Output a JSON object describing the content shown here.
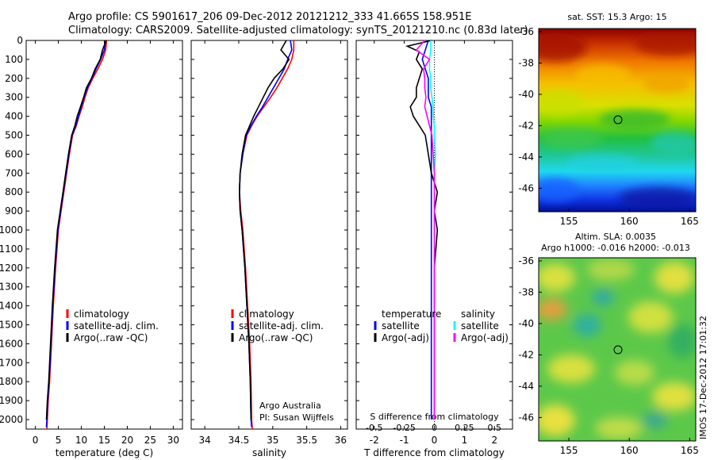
{
  "header": {
    "line1": "Argo profile: CS 5901617_206 09-Dec-2012 20121212_333 41.665S 158.951E",
    "line2": "Climatology: CARS2009. Satellite-adjusted climatology: synTS_20121210.nc (0.83d later)"
  },
  "colors": {
    "climatology": "#ff0000",
    "satellite": "#0000ff",
    "argo": "#000000",
    "salinity_satellite": "#00ffff",
    "salinity_argo": "#ff00ff"
  },
  "chart_data": [
    {
      "type": "line",
      "panel": "temperature",
      "xlabel": "temperature (deg C)",
      "xlim": [
        -2,
        32
      ],
      "xticks": [
        0,
        5,
        10,
        15,
        20,
        25,
        30
      ],
      "ylim": [
        2050,
        0
      ],
      "yticks": [
        0,
        100,
        200,
        300,
        400,
        500,
        600,
        700,
        800,
        900,
        1000,
        1100,
        1200,
        1300,
        1400,
        1500,
        1600,
        1700,
        1800,
        1900,
        2000
      ],
      "legend": [
        {
          "label": "climatology",
          "color": "#ff0000"
        },
        {
          "label": "satellite-adj. clim.",
          "color": "#0000ff"
        },
        {
          "label": "Argo(..raw -QC)",
          "color": "#000000"
        }
      ],
      "series": [
        {
          "name": "climatology",
          "color": "#ff0000",
          "x": [
            15.5,
            15.3,
            14.6,
            13.6,
            12.5,
            11.5,
            10.8,
            10.2,
            9.5,
            8.9,
            8.1,
            7.4,
            6.8,
            6.2,
            5.6,
            5.0,
            4.4,
            3.9,
            3.5,
            3.1,
            2.8,
            2.6,
            2.5
          ],
          "y": [
            0,
            50,
            100,
            150,
            200,
            250,
            300,
            350,
            400,
            450,
            500,
            600,
            700,
            800,
            900,
            1000,
            1200,
            1400,
            1600,
            1800,
            1900,
            2000,
            2050
          ]
        },
        {
          "name": "satellite-adj. clim.",
          "color": "#0000ff",
          "x": [
            15.3,
            15.0,
            14.2,
            13.2,
            12.3,
            11.3,
            10.6,
            10.0,
            9.4,
            8.8,
            8.0,
            7.3,
            6.7,
            6.1,
            5.5,
            4.9,
            4.3,
            3.8,
            3.4,
            3.0,
            2.7,
            2.5,
            2.4
          ],
          "y": [
            0,
            50,
            100,
            150,
            200,
            250,
            300,
            350,
            400,
            450,
            500,
            600,
            700,
            800,
            900,
            1000,
            1200,
            1400,
            1600,
            1800,
            1900,
            2000,
            2040
          ]
        },
        {
          "name": "Argo(..raw -QC)",
          "color": "#000000",
          "x": [
            15.4,
            14.6,
            14.1,
            13.0,
            12.2,
            11.1,
            10.5,
            9.8,
            9.1,
            8.6,
            7.9,
            7.2,
            6.6,
            6.0,
            5.4,
            4.8,
            4.2,
            3.7,
            3.3,
            2.9,
            2.6,
            2.4
          ],
          "y": [
            0,
            50,
            100,
            150,
            200,
            250,
            300,
            350,
            400,
            450,
            500,
            600,
            700,
            800,
            900,
            1000,
            1200,
            1400,
            1600,
            1800,
            1900,
            2000
          ]
        }
      ],
      "annotation": ""
    },
    {
      "type": "line",
      "panel": "salinity",
      "xlabel": "salinity",
      "xlim": [
        33.8,
        36.1
      ],
      "xticks": [
        34,
        34.5,
        35,
        35.5,
        36
      ],
      "xticklabels": [
        "34",
        "34.5",
        "35",
        "35.5",
        "36"
      ],
      "ylim": [
        2050,
        0
      ],
      "legend": [
        {
          "label": "climatology",
          "color": "#ff0000"
        },
        {
          "label": "satellite-adj. clim.",
          "color": "#0000ff"
        },
        {
          "label": "Argo(..raw -QC)",
          "color": "#000000"
        }
      ],
      "series": [
        {
          "name": "climatology",
          "color": "#ff0000",
          "x": [
            35.31,
            35.31,
            35.28,
            35.22,
            35.14,
            35.06,
            34.97,
            34.87,
            34.77,
            34.69,
            34.62,
            34.56,
            34.52,
            34.51,
            34.53,
            34.56,
            34.6,
            34.63,
            34.66,
            34.68,
            34.69,
            34.7
          ],
          "y": [
            0,
            50,
            100,
            150,
            200,
            250,
            300,
            350,
            400,
            450,
            500,
            600,
            700,
            800,
            900,
            1000,
            1200,
            1400,
            1600,
            1800,
            2000,
            2050
          ]
        },
        {
          "name": "satellite-adj. clim.",
          "color": "#0000ff",
          "x": [
            35.26,
            35.28,
            35.22,
            35.17,
            35.09,
            35.01,
            34.93,
            34.85,
            34.76,
            34.68,
            34.61,
            34.56,
            34.52,
            34.51,
            34.52,
            34.55,
            34.59,
            34.62,
            34.65,
            34.67,
            34.68,
            34.69
          ],
          "y": [
            0,
            50,
            100,
            150,
            200,
            250,
            300,
            350,
            400,
            450,
            500,
            600,
            700,
            800,
            900,
            1000,
            1200,
            1400,
            1600,
            1800,
            2000,
            2040
          ]
        },
        {
          "name": "Argo(..raw -QC)",
          "color": "#000000",
          "x": [
            35.2,
            35.12,
            35.24,
            35.15,
            35.02,
            34.93,
            34.86,
            34.79,
            34.72,
            34.66,
            34.6,
            34.55,
            34.52,
            34.51,
            34.52,
            34.55,
            34.59,
            34.62,
            34.65,
            34.67,
            34.68
          ],
          "y": [
            0,
            50,
            100,
            150,
            200,
            250,
            300,
            350,
            400,
            450,
            500,
            600,
            700,
            800,
            900,
            1000,
            1200,
            1400,
            1600,
            1800,
            2000
          ]
        }
      ],
      "annotation": [
        "Argo Australia",
        "PI: Susan Wijffels"
      ]
    },
    {
      "type": "line",
      "panel": "difference",
      "xlabel": "T difference from climatology",
      "xlim": [
        -2.6,
        2.6
      ],
      "xticks": [
        -2,
        -1,
        0,
        1,
        2
      ],
      "xticklabels": [
        "-2",
        "-1",
        "0",
        "1",
        "2"
      ],
      "x2label": "S difference from climatology",
      "x2ticks": [
        -0.5,
        -0.25,
        0,
        0.25,
        0.5
      ],
      "x2ticklabels": [
        "-0.5",
        "-0.25",
        "0",
        "0.25",
        "0.5"
      ],
      "ylim": [
        2050,
        0
      ],
      "legend": [
        {
          "group": "temperature",
          "label": "satellite",
          "color": "#0000ff"
        },
        {
          "group": "temperature",
          "label": "Argo(-adj)",
          "color": "#000000"
        },
        {
          "group": "salinity",
          "label": "satellite",
          "color": "#00ffff"
        },
        {
          "group": "salinity",
          "label": "Argo(-adj)",
          "color": "#ff00ff"
        }
      ],
      "series": [
        {
          "name": "T satellite",
          "color": "#0000ff",
          "x": [
            -0.2,
            -0.3,
            -0.4,
            -0.3,
            -0.2,
            -0.2,
            -0.2,
            -0.1,
            -0.1,
            -0.1,
            -0.1,
            -0.1,
            -0.1,
            -0.1,
            -0.1,
            -0.1,
            -0.1,
            -0.1,
            -0.1,
            -0.1,
            -0.1
          ],
          "y": [
            0,
            50,
            100,
            150,
            200,
            250,
            300,
            350,
            400,
            450,
            500,
            600,
            700,
            800,
            900,
            1000,
            1200,
            1400,
            1600,
            1800,
            2000
          ]
        },
        {
          "name": "T Argo(-adj)",
          "color": "#000000",
          "x": [
            -0.1,
            -0.9,
            -0.5,
            -0.6,
            -0.4,
            -0.6,
            -0.6,
            -0.8,
            -0.7,
            -0.5,
            -0.3,
            -0.2,
            -0.1,
            0.1,
            0.0,
            0.1,
            0.0,
            0.0,
            0.0,
            0.0,
            0.0
          ],
          "y": [
            0,
            30,
            60,
            100,
            150,
            250,
            300,
            350,
            400,
            450,
            500,
            600,
            700,
            800,
            900,
            1000,
            1200,
            1400,
            1600,
            1800,
            2000
          ]
        },
        {
          "name": "S satellite",
          "color": "#00ffff",
          "x": [
            -0.03,
            -0.03,
            -0.04,
            -0.04,
            -0.03,
            -0.03,
            -0.02,
            -0.01,
            -0.01,
            0.0,
            0.0,
            0.01,
            0.0,
            0.0,
            0.0,
            0.0,
            0.0,
            0.0,
            0.0,
            0.0,
            0.0
          ],
          "y": [
            0,
            50,
            100,
            150,
            200,
            250,
            300,
            350,
            400,
            450,
            500,
            600,
            700,
            800,
            900,
            1000,
            1200,
            1400,
            1600,
            1800,
            2000
          ]
        },
        {
          "name": "S Argo(-adj)",
          "color": "#ff00ff",
          "x": [
            -0.08,
            -0.15,
            -0.04,
            -0.09,
            -0.08,
            -0.08,
            -0.07,
            -0.08,
            -0.06,
            -0.04,
            -0.02,
            -0.01,
            0.0,
            0.0,
            0.0,
            0.0,
            0.0,
            0.0,
            0.0,
            0.0,
            0.0
          ],
          "y": [
            0,
            50,
            100,
            150,
            200,
            250,
            300,
            350,
            400,
            450,
            500,
            600,
            700,
            800,
            900,
            1000,
            1200,
            1400,
            1600,
            1800,
            2000
          ]
        }
      ],
      "annotation": ""
    },
    {
      "type": "heatmap",
      "panel": "sst-map",
      "title": "sat. SST: 15.3 Argo: 15",
      "xticks": [
        155,
        160,
        165
      ],
      "yticks": [
        -36,
        -38,
        -40,
        -42,
        -44,
        -46
      ],
      "xlim": [
        152.5,
        165.5
      ],
      "ylim": [
        -47.5,
        -35.8
      ],
      "marker": {
        "lon": 158.951,
        "lat": -41.665
      }
    },
    {
      "type": "heatmap",
      "panel": "sla-map",
      "title": "Altim. SLA: 0.0035",
      "subtitle": "Argo h1000: -0.016 h2000: -0.013",
      "xticks": [
        155,
        160,
        165
      ],
      "yticks": [
        -36,
        -38,
        -40,
        -42,
        -44,
        -46
      ],
      "xlim": [
        152.5,
        165.5
      ],
      "ylim": [
        -47.5,
        -35.8
      ],
      "marker": {
        "lon": 158.951,
        "lat": -41.665
      }
    }
  ],
  "watermark": "IMOS 17-Dec-2012 17:01:32"
}
